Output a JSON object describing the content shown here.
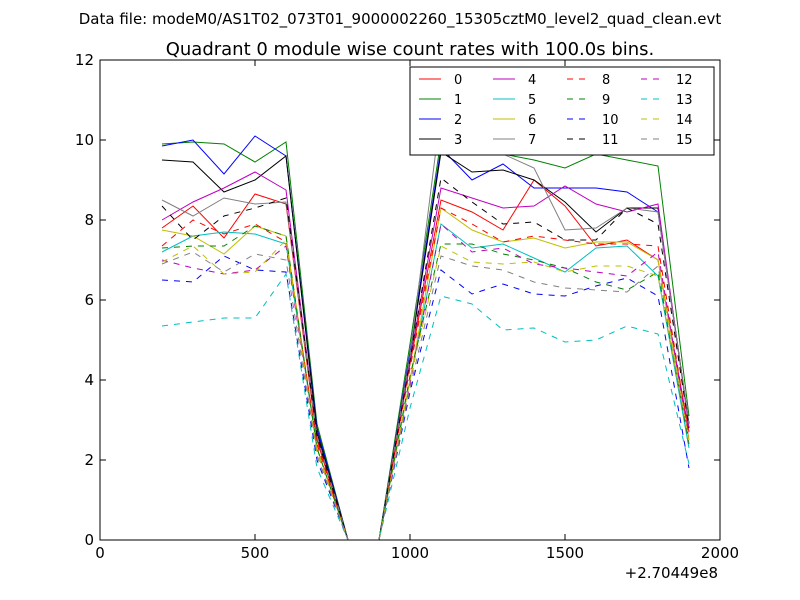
{
  "chart_data": {
    "type": "line",
    "suptitle": "Data file: modeM0/AS1T02_073T01_9000002260_15305cztM0_level2_quad_clean.evt",
    "title": "Quadrant 0 module wise count rates with 100.0s bins.",
    "xlabel": "",
    "ylabel": "",
    "x_offset_label": "+2.70449e8",
    "xlim": [
      0,
      2000
    ],
    "ylim": [
      0,
      12
    ],
    "xticks": [
      0,
      500,
      1000,
      1500,
      2000
    ],
    "yticks": [
      0,
      2,
      4,
      6,
      8,
      10,
      12
    ],
    "x": [
      200,
      300,
      400,
      500,
      600,
      700,
      800,
      900,
      1000,
      1100,
      1200,
      1300,
      1400,
      1500,
      1600,
      1700,
      1800,
      1900
    ],
    "legend_position": "top-right",
    "series": [
      {
        "name": "0",
        "color": "#ff0000",
        "dash": "solid",
        "values": [
          7.8,
          8.35,
          7.55,
          8.65,
          8.4,
          2.5,
          0,
          0,
          4.4,
          8.5,
          8.2,
          7.75,
          9.0,
          8.35,
          7.35,
          7.5,
          7.0,
          2.7
        ]
      },
      {
        "name": "1",
        "color": "#008000",
        "dash": "solid",
        "values": [
          9.9,
          9.95,
          9.9,
          9.45,
          9.95,
          2.9,
          0,
          0,
          4.9,
          10.0,
          9.75,
          9.65,
          9.5,
          9.3,
          9.65,
          9.5,
          9.35,
          3.1
        ]
      },
      {
        "name": "2",
        "color": "#0000ff",
        "dash": "solid",
        "values": [
          9.85,
          10.0,
          9.15,
          10.1,
          9.6,
          2.8,
          0,
          0,
          4.7,
          9.8,
          9.0,
          9.4,
          8.8,
          8.8,
          8.8,
          8.7,
          8.2,
          2.9
        ]
      },
      {
        "name": "3",
        "color": "#000000",
        "dash": "solid",
        "values": [
          9.5,
          9.45,
          8.7,
          9.0,
          9.6,
          2.7,
          0,
          0,
          4.6,
          9.7,
          9.2,
          9.25,
          9.0,
          8.45,
          7.7,
          8.3,
          8.3,
          2.9
        ]
      },
      {
        "name": "4",
        "color": "#bf00bf",
        "dash": "solid",
        "values": [
          8.0,
          8.45,
          8.8,
          9.2,
          8.75,
          2.6,
          0,
          0,
          4.5,
          8.8,
          8.55,
          8.3,
          8.35,
          8.85,
          8.4,
          8.2,
          8.4,
          2.8
        ]
      },
      {
        "name": "5",
        "color": "#00bfbf",
        "dash": "solid",
        "values": [
          7.2,
          7.6,
          7.7,
          7.65,
          7.4,
          2.3,
          0,
          0,
          4.0,
          7.9,
          7.3,
          7.4,
          7.05,
          6.7,
          7.3,
          7.35,
          6.6,
          2.3
        ]
      },
      {
        "name": "6",
        "color": "#bfbf00",
        "dash": "solid",
        "values": [
          7.75,
          7.6,
          7.15,
          7.85,
          7.6,
          2.3,
          0,
          0,
          4.0,
          8.3,
          7.75,
          7.45,
          7.55,
          7.3,
          7.45,
          7.45,
          7.0,
          2.5
        ]
      },
      {
        "name": "7",
        "color": "#808080",
        "dash": "solid",
        "values": [
          8.5,
          8.1,
          8.55,
          8.4,
          8.45,
          2.6,
          0,
          0,
          4.6,
          10.75,
          10.05,
          9.65,
          9.3,
          7.75,
          7.8,
          8.3,
          8.2,
          2.9
        ]
      },
      {
        "name": "8",
        "color": "#ff0000",
        "dash": "dashed",
        "values": [
          7.35,
          8.0,
          7.65,
          7.9,
          7.45,
          2.4,
          0,
          0,
          4.3,
          8.3,
          7.9,
          7.45,
          7.6,
          7.5,
          7.4,
          7.4,
          7.35,
          2.6
        ]
      },
      {
        "name": "9",
        "color": "#008000",
        "dash": "dashed",
        "values": [
          7.3,
          7.35,
          7.35,
          7.85,
          7.6,
          2.3,
          0,
          0,
          4.1,
          7.4,
          7.4,
          7.15,
          7.0,
          6.8,
          6.45,
          6.25,
          6.7,
          2.4
        ]
      },
      {
        "name": "10",
        "color": "#0000ff",
        "dash": "dashed",
        "values": [
          6.5,
          6.45,
          7.1,
          6.75,
          6.7,
          2.0,
          0,
          0,
          3.7,
          6.75,
          6.15,
          6.4,
          6.15,
          6.1,
          6.35,
          6.55,
          6.1,
          1.8
        ]
      },
      {
        "name": "11",
        "color": "#000000",
        "dash": "dashed",
        "values": [
          8.35,
          7.5,
          8.1,
          8.3,
          8.55,
          2.6,
          0,
          0,
          4.5,
          9.05,
          8.45,
          7.9,
          7.95,
          7.5,
          7.5,
          8.3,
          7.9,
          2.8
        ]
      },
      {
        "name": "12",
        "color": "#bf00bf",
        "dash": "dashed",
        "values": [
          7.0,
          6.8,
          6.65,
          6.75,
          7.35,
          2.2,
          0,
          0,
          3.9,
          7.9,
          7.2,
          7.3,
          6.9,
          6.8,
          6.7,
          6.6,
          7.2,
          2.5
        ]
      },
      {
        "name": "13",
        "color": "#00bfbf",
        "dash": "dashed",
        "values": [
          5.35,
          5.45,
          5.55,
          5.55,
          6.65,
          1.8,
          0,
          0,
          3.3,
          6.1,
          5.9,
          5.25,
          5.3,
          4.95,
          5.0,
          5.35,
          5.15,
          1.9
        ]
      },
      {
        "name": "14",
        "color": "#bfbf00",
        "dash": "dashed",
        "values": [
          6.95,
          7.35,
          6.65,
          6.7,
          7.5,
          2.2,
          0,
          0,
          4.0,
          7.35,
          6.95,
          6.9,
          6.95,
          6.7,
          6.85,
          6.85,
          6.6,
          2.5
        ]
      },
      {
        "name": "15",
        "color": "#808080",
        "dash": "dashed",
        "values": [
          6.9,
          7.2,
          6.7,
          7.15,
          7.0,
          2.1,
          0,
          0,
          3.8,
          7.1,
          6.85,
          6.75,
          6.45,
          6.3,
          6.25,
          6.2,
          6.85,
          2.3
        ]
      }
    ]
  }
}
